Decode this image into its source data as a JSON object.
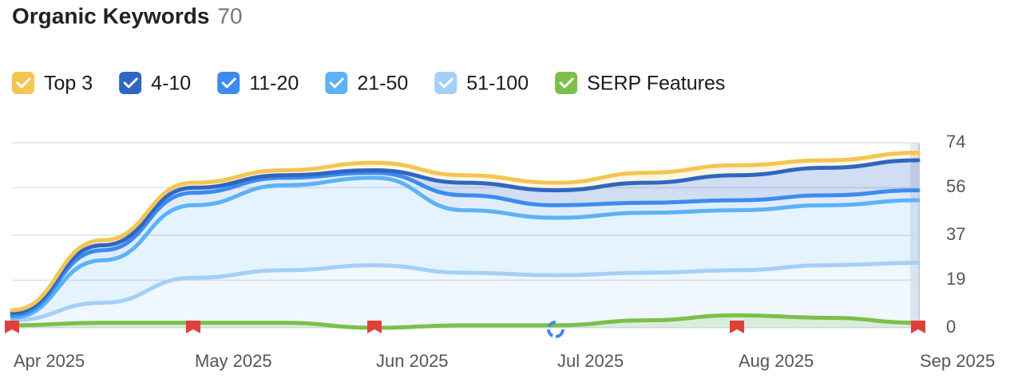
{
  "chart_data": {
    "type": "line",
    "title": "Organic Keywords",
    "total": 70,
    "categories": [
      "Apr 2025",
      null,
      "May 2025",
      null,
      "Jun 2025",
      null,
      "Jul 2025",
      null,
      "Aug 2025",
      null,
      "Sep 2025"
    ],
    "series": [
      {
        "name": "Top 3",
        "color": "#f5c451",
        "stacked": true,
        "values": [
          1,
          2,
          2,
          2,
          3,
          3,
          3,
          4,
          4,
          3,
          3
        ]
      },
      {
        "name": "4-10",
        "color": "#2f66c2",
        "stacked": true,
        "values": [
          1,
          2,
          2,
          1,
          1,
          5,
          6,
          8,
          10,
          11,
          12
        ]
      },
      {
        "name": "11-20",
        "color": "#3d8bef",
        "stacked": true,
        "values": [
          1,
          4,
          5,
          3,
          2,
          6,
          5,
          4,
          4,
          4,
          4
        ]
      },
      {
        "name": "21-50",
        "color": "#5cb2f7",
        "stacked": true,
        "values": [
          1,
          17,
          29,
          34,
          35,
          25,
          23,
          24,
          24,
          24,
          25
        ]
      },
      {
        "name": "51-100",
        "color": "#a4cff8",
        "stacked": true,
        "values": [
          3,
          10,
          20,
          23,
          25,
          22,
          21,
          22,
          23,
          25,
          26
        ]
      },
      {
        "name": "SERP Features",
        "color": "#7cbf4a",
        "stacked": false,
        "values": [
          1,
          2,
          2,
          2,
          0,
          1,
          1,
          3,
          5,
          4,
          2
        ]
      }
    ],
    "ylim": [
      0,
      74
    ],
    "yticks": [
      0,
      19,
      37,
      56,
      74
    ],
    "grid": true
  }
}
